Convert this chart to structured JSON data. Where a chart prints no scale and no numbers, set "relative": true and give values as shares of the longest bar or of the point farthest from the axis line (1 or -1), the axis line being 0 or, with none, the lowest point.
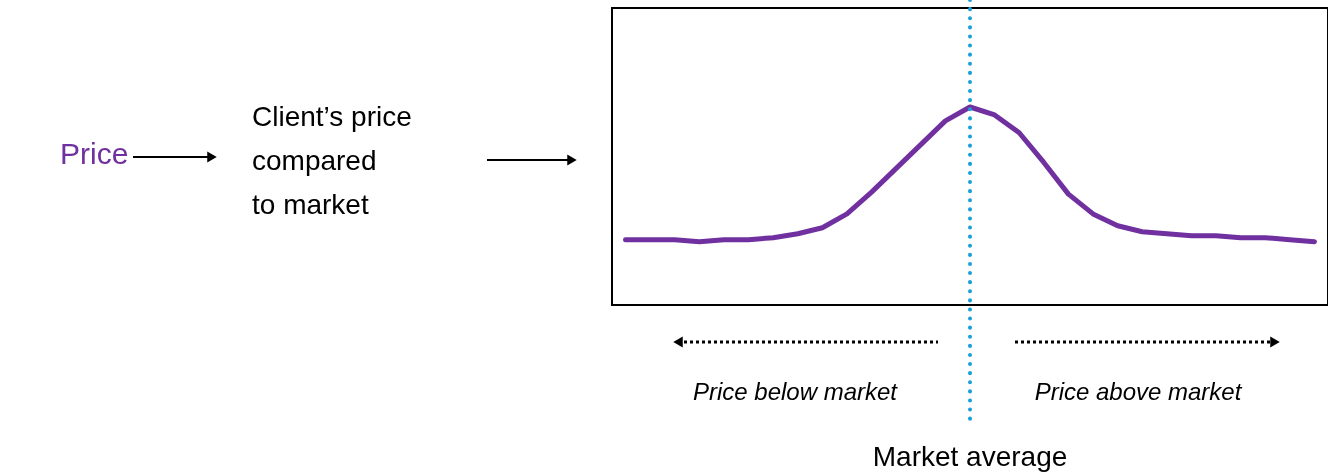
{
  "chart_data": {
    "type": "line",
    "relative": true,
    "categories": [
      null,
      null,
      null,
      null,
      null,
      null,
      null,
      null,
      null,
      null,
      null,
      null,
      null,
      null,
      null,
      null,
      null,
      null,
      null,
      null,
      null,
      null,
      null,
      null,
      null,
      null,
      null,
      null,
      null
    ],
    "series": [
      {
        "color": "#7030a0",
        "values": [
          0.33,
          0.33,
          0.33,
          0.32,
          0.33,
          0.33,
          0.34,
          0.36,
          0.39,
          0.46,
          0.57,
          0.69,
          0.81,
          0.93,
          1.0,
          0.96,
          0.87,
          0.72,
          0.56,
          0.46,
          0.4,
          0.37,
          0.36,
          0.35,
          0.35,
          0.34,
          0.34,
          0.33,
          0.32
        ]
      }
    ],
    "annotations": [
      "Price",
      "Client’s price\ncompared\nto market",
      "Price below market",
      "Price above market",
      "Market average"
    ],
    "grid": false,
    "tick_labels": false,
    "marker": "none",
    "line_style": "solid"
  }
}
